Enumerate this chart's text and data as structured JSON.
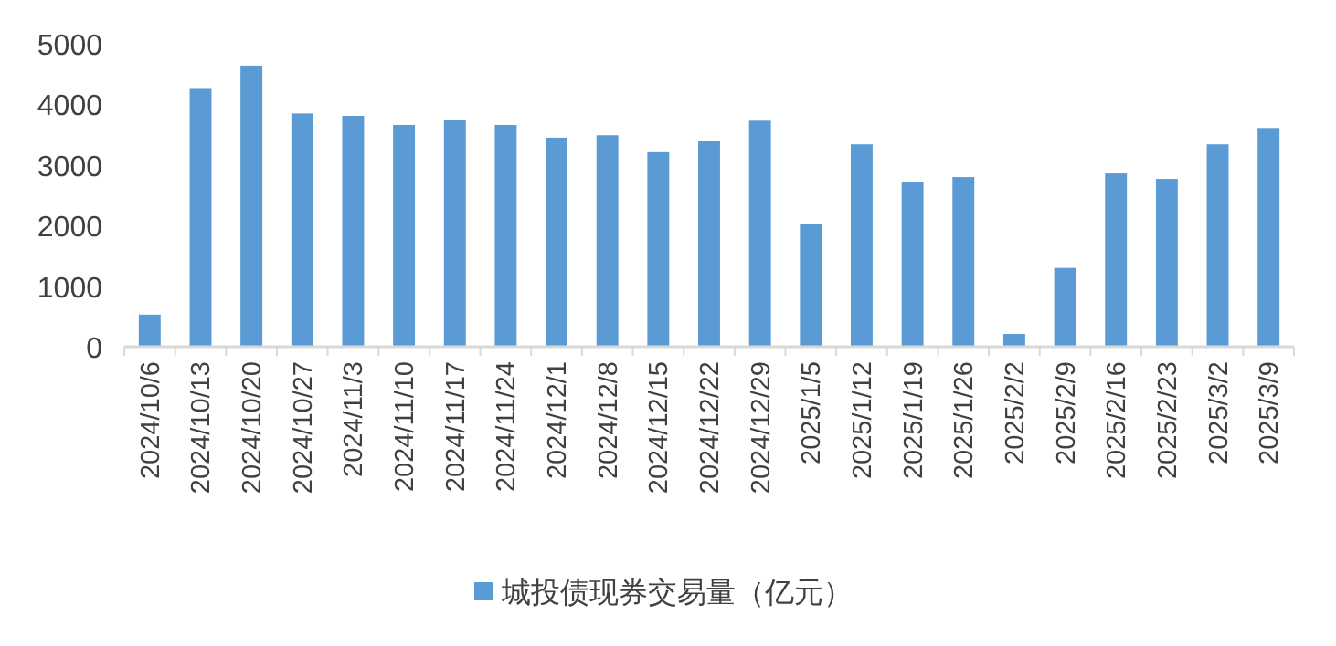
{
  "chart_data": {
    "type": "bar",
    "categories": [
      "2024/10/6",
      "2024/10/13",
      "2024/10/20",
      "2024/10/27",
      "2024/11/3",
      "2024/11/10",
      "2024/11/17",
      "2024/11/24",
      "2024/12/1",
      "2024/12/8",
      "2024/12/15",
      "2024/12/22",
      "2024/12/29",
      "2025/1/5",
      "2025/1/12",
      "2025/1/19",
      "2025/1/26",
      "2025/2/2",
      "2025/2/9",
      "2025/2/16",
      "2025/2/23",
      "2025/3/2",
      "2025/3/9"
    ],
    "series": [
      {
        "name": "城投债现券交易量（亿元）",
        "color": "#5b9bd5",
        "values": [
          530,
          4270,
          4640,
          3850,
          3810,
          3660,
          3750,
          3660,
          3450,
          3490,
          3210,
          3400,
          3730,
          2020,
          3340,
          2710,
          2800,
          210,
          1300,
          2860,
          2770,
          3340,
          3610
        ]
      }
    ],
    "ylim": [
      0,
      5000
    ],
    "yticks": [
      0,
      1000,
      2000,
      3000,
      4000,
      5000
    ],
    "grid": false,
    "legend": "bottom"
  }
}
